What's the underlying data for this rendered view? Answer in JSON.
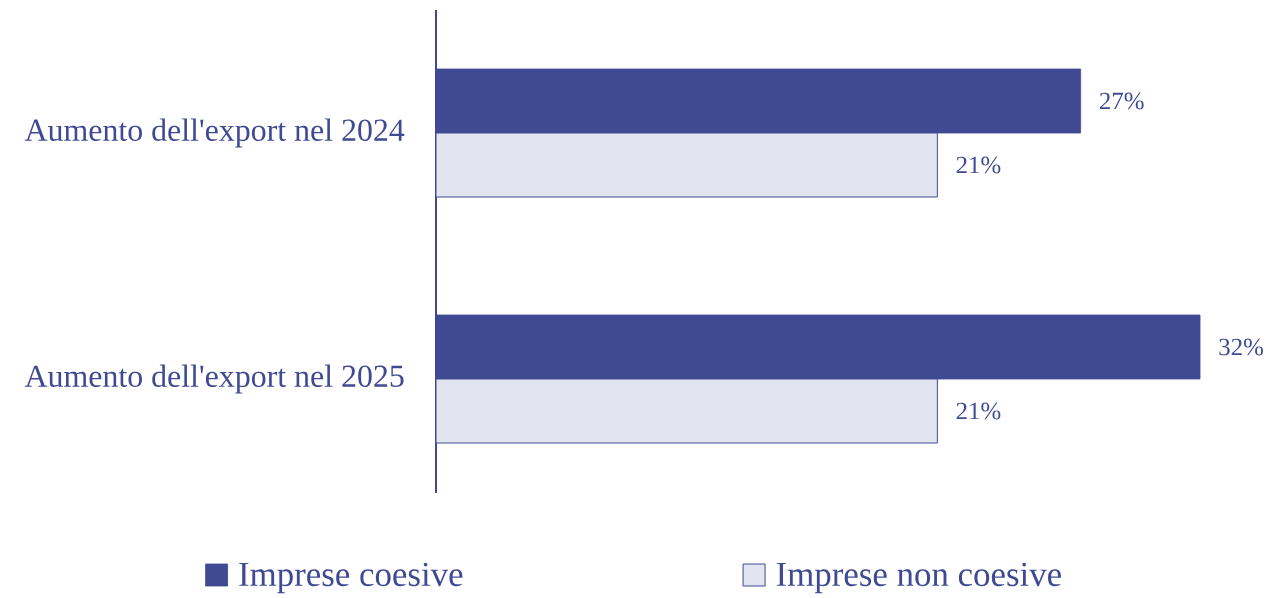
{
  "chart_data": {
    "type": "bar",
    "orientation": "horizontal",
    "categories": [
      "Aumento dell'export nel 2024",
      "Aumento dell'export nel 2025"
    ],
    "series": [
      {
        "name": "Imprese coesive",
        "color": "#404a93",
        "values": [
          27,
          32
        ],
        "value_labels": [
          "27%",
          "32%"
        ]
      },
      {
        "name": "Imprese non coesive",
        "color": "#e2e4ef",
        "values": [
          21,
          21
        ],
        "value_labels": [
          "21%",
          "21%"
        ]
      }
    ],
    "legend": "bottom"
  }
}
